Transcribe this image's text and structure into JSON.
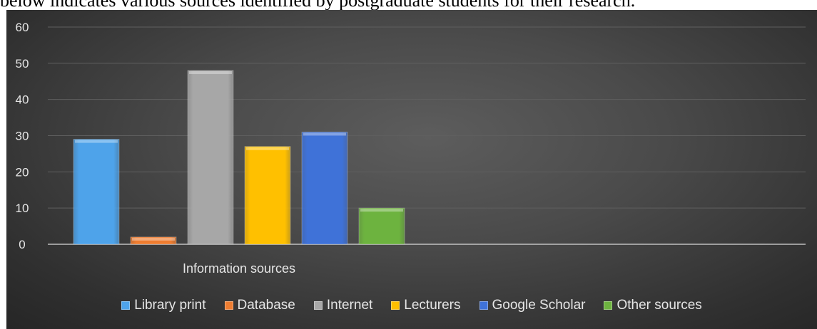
{
  "caption": "below indicates various sources identified by postgraduate students for their research.",
  "chart_data": {
    "type": "bar",
    "categories": [
      "Information sources"
    ],
    "series": [
      {
        "name": "Library print",
        "values": [
          29
        ],
        "color": "#4ea3ea"
      },
      {
        "name": "Database",
        "values": [
          2
        ],
        "color": "#ee7d31"
      },
      {
        "name": "Internet",
        "values": [
          48
        ],
        "color": "#a7a7a7"
      },
      {
        "name": "Lecturers",
        "values": [
          27
        ],
        "color": "#ffc000"
      },
      {
        "name": "Google Scholar",
        "values": [
          31
        ],
        "color": "#3f72d8"
      },
      {
        "name": "Other sources",
        "values": [
          10
        ],
        "color": "#6db33f"
      }
    ],
    "yticks": [
      0,
      10,
      20,
      30,
      40,
      50,
      60
    ],
    "ylim": [
      0,
      60
    ],
    "grid": true,
    "legend": "bottom",
    "background": "#444444"
  }
}
